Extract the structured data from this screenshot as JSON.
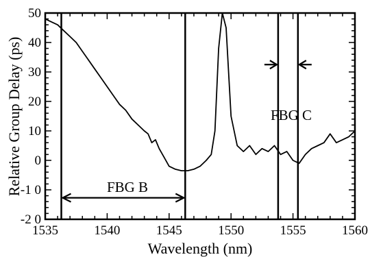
{
  "chart_data": {
    "type": "line",
    "title": "",
    "xlabel": "Wavelength  (nm)",
    "ylabel": "Relative Group Delay (ps)",
    "xlim": [
      1535,
      1560
    ],
    "ylim": [
      -20,
      50
    ],
    "x_ticks": [
      1535,
      1540,
      1545,
      1550,
      1555,
      1560
    ],
    "x_tick_labels": [
      "1535",
      "1540",
      "1545",
      "1550",
      "1555",
      "1560"
    ],
    "y_ticks": [
      -20,
      -10,
      0,
      10,
      20,
      30,
      40,
      50
    ],
    "y_tick_labels": [
      "-2 0",
      "-1 0",
      "0",
      "10",
      "20",
      "30",
      "40",
      "50"
    ],
    "grid": false,
    "series": [
      {
        "color": "#000000",
        "x": [
          1535.0,
          1535.5,
          1536.0,
          1536.5,
          1537.0,
          1537.5,
          1538.0,
          1538.5,
          1539.0,
          1539.5,
          1540.0,
          1540.5,
          1541.0,
          1541.5,
          1542.0,
          1542.5,
          1543.0,
          1543.3,
          1543.6,
          1543.9,
          1544.2,
          1544.6,
          1545.0,
          1545.5,
          1546.0,
          1546.5,
          1547.0,
          1547.5,
          1548.0,
          1548.4,
          1548.7,
          1549.0,
          1549.3,
          1549.6,
          1550.0,
          1550.5,
          1551.0,
          1551.5,
          1552.0,
          1552.5,
          1553.0,
          1553.5,
          1554.0,
          1554.5,
          1555.0,
          1555.5,
          1556.0,
          1556.5,
          1557.0,
          1557.5,
          1558.0,
          1558.5,
          1559.0,
          1559.5,
          1560.0
        ],
        "y": [
          48,
          47,
          46,
          44,
          42,
          40,
          37,
          34,
          31,
          28,
          25,
          22,
          19,
          17,
          14,
          12,
          10,
          9,
          6,
          7,
          4,
          1,
          -2,
          -3,
          -3.5,
          -3.5,
          -3,
          -2,
          0,
          2,
          10,
          38,
          50,
          45,
          15,
          5,
          3,
          5,
          2,
          4,
          3,
          5,
          2,
          3,
          0,
          -1,
          2,
          4,
          5,
          6,
          9,
          6,
          7,
          8,
          10
        ]
      }
    ],
    "vertical_lines_x": [
      1536.3,
      1546.3,
      1553.8,
      1555.4
    ],
    "annotations": [
      {
        "text": "FBG B",
        "x": 1541.3,
        "y": -6.5
      },
      {
        "text": "FBG C",
        "x": 1554.6,
        "y": 22
      }
    ],
    "range_markers": [
      {
        "label": "FBG B",
        "x1": 1536.3,
        "x2": 1546.3,
        "y": -12.7
      },
      {
        "label": "FBG C",
        "x1": 1553.8,
        "x2": 1555.4,
        "y": 32.5
      }
    ]
  }
}
